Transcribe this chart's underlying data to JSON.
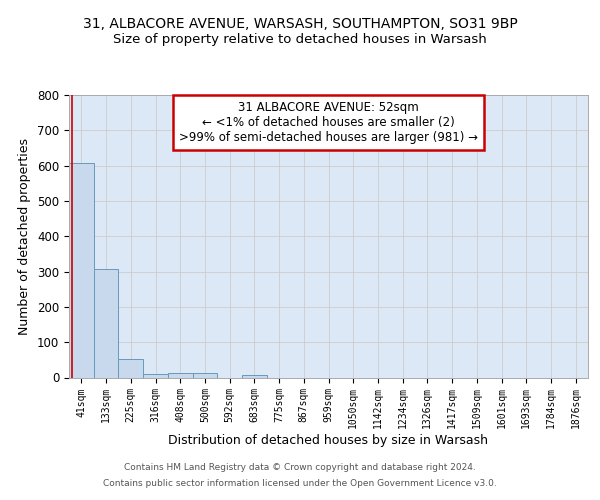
{
  "title_line1": "31, ALBACORE AVENUE, WARSASH, SOUTHAMPTON, SO31 9BP",
  "title_line2": "Size of property relative to detached houses in Warsash",
  "xlabel": "Distribution of detached houses by size in Warsash",
  "ylabel": "Number of detached properties",
  "bar_labels": [
    "41sqm",
    "133sqm",
    "225sqm",
    "316sqm",
    "408sqm",
    "500sqm",
    "592sqm",
    "683sqm",
    "775sqm",
    "867sqm",
    "959sqm",
    "1050sqm",
    "1142sqm",
    "1234sqm",
    "1326sqm",
    "1417sqm",
    "1509sqm",
    "1601sqm",
    "1693sqm",
    "1784sqm",
    "1876sqm"
  ],
  "bar_values": [
    607,
    308,
    52,
    11,
    12,
    13,
    0,
    8,
    0,
    0,
    0,
    0,
    0,
    0,
    0,
    0,
    0,
    0,
    0,
    0,
    0
  ],
  "bar_color": "#c8d9ed",
  "bar_edge_color": "#6699bb",
  "annotation_text_line1": "31 ALBACORE AVENUE: 52sqm",
  "annotation_text_line2": "← <1% of detached houses are smaller (2)",
  "annotation_text_line3": ">99% of semi-detached houses are larger (981) →",
  "annotation_box_color": "#ffffff",
  "annotation_box_edge_color": "#cc0000",
  "ylim": [
    0,
    800
  ],
  "yticks": [
    0,
    100,
    200,
    300,
    400,
    500,
    600,
    700,
    800
  ],
  "grid_color": "#cccccc",
  "bg_color": "#dce8f5",
  "footer_line1": "Contains HM Land Registry data © Crown copyright and database right 2024.",
  "footer_line2": "Contains public sector information licensed under the Open Government Licence v3.0.",
  "fig_bg": "#ffffff",
  "red_line_color": "#cc0000",
  "title_fontsize": 10,
  "subtitle_fontsize": 9.5,
  "ann_fontsize": 8.5
}
